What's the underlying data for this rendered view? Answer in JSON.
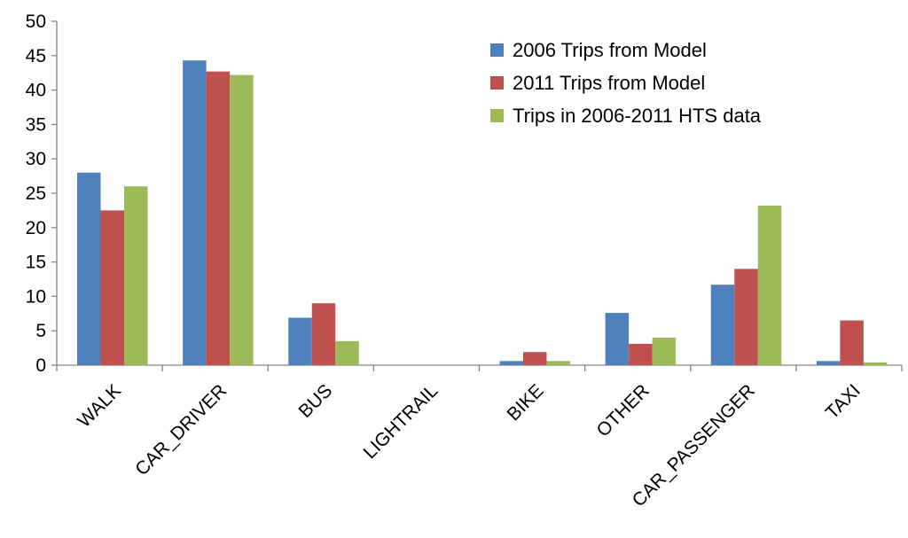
{
  "chart_data": {
    "type": "bar",
    "categories": [
      "WALK",
      "CAR_DRIVER",
      "BUS",
      "LIGHTRAIL",
      "BIKE",
      "OTHER",
      "CAR_PASSENGER",
      "TAXI"
    ],
    "series": [
      {
        "name": "2006 Trips from Model",
        "color": "#4F81BD",
        "values": [
          28,
          44.3,
          6.9,
          0,
          0.6,
          7.6,
          11.7,
          0.6
        ]
      },
      {
        "name": "2011 Trips from Model",
        "color": "#C0504D",
        "values": [
          22.5,
          42.7,
          9.0,
          0,
          1.9,
          3.1,
          14.0,
          6.5
        ]
      },
      {
        "name": "Trips in 2006-2011 HTS data",
        "color": "#9BBB59",
        "values": [
          26,
          42.2,
          3.5,
          0,
          0.6,
          4.0,
          23.2,
          0.4
        ]
      }
    ],
    "ylim": [
      0,
      50
    ],
    "yticks": [
      0,
      5,
      10,
      15,
      20,
      25,
      30,
      35,
      40,
      45,
      50
    ],
    "grid": false,
    "legend": "top-right",
    "title": "",
    "xlabel": "",
    "ylabel": ""
  }
}
